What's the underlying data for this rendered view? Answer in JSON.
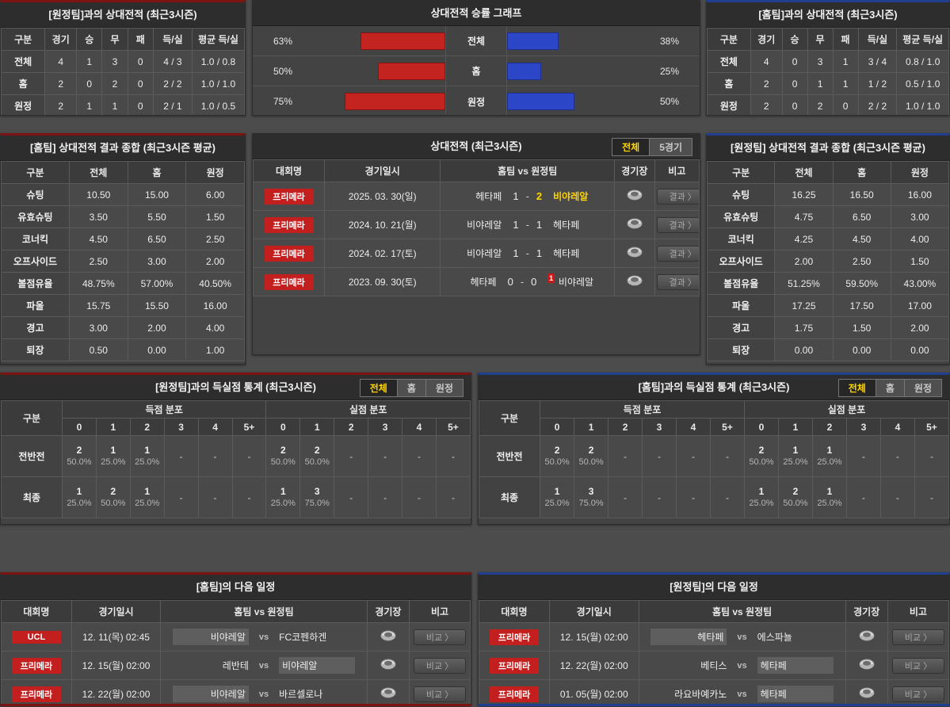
{
  "colors": {
    "home_accent_red": "#c42420",
    "away_accent_blue": "#2b46c6",
    "panel_border_red": "#7c1414",
    "panel_border_blue": "#20408f",
    "league_badge_red": "#c41f1f",
    "active_tab_text": "#ffd400",
    "winner_text": "#ffd400"
  },
  "top_summary_away": {
    "title": "[원정팀]과의 상대전적 (최근3시즌)",
    "headers": [
      "구분",
      "경기",
      "승",
      "무",
      "패",
      "득/실",
      "평균 득/실"
    ],
    "rows": [
      {
        "label": "전체",
        "values": [
          "4",
          "1",
          "3",
          "0",
          "4 / 3",
          "1.0 / 0.8"
        ]
      },
      {
        "label": "홈",
        "values": [
          "2",
          "0",
          "2",
          "0",
          "2 / 2",
          "1.0 / 1.0"
        ]
      },
      {
        "label": "원정",
        "values": [
          "2",
          "1",
          "1",
          "0",
          "2 / 1",
          "1.0 / 0.5"
        ]
      }
    ]
  },
  "top_summary_home": {
    "title": "[홈팀]과의 상대전적 (최근3시즌)",
    "headers": [
      "구분",
      "경기",
      "승",
      "무",
      "패",
      "득/실",
      "평균 득/실"
    ],
    "rows": [
      {
        "label": "전체",
        "values": [
          "4",
          "0",
          "3",
          "1",
          "3 / 4",
          "0.8 / 1.0"
        ]
      },
      {
        "label": "홈",
        "values": [
          "2",
          "0",
          "1",
          "1",
          "1 / 2",
          "0.5 / 1.0"
        ]
      },
      {
        "label": "원정",
        "values": [
          "2",
          "0",
          "2",
          "0",
          "2 / 2",
          "1.0 / 1.0"
        ]
      }
    ]
  },
  "chart_data": {
    "type": "bar",
    "title": "상대전적 승률 그래프",
    "orientation": "horizontal-diverging",
    "categories": [
      "전체",
      "홈",
      "원정"
    ],
    "series": [
      {
        "name": "home-winrate",
        "color": "#c42420",
        "values": [
          63,
          50,
          75
        ],
        "labels": [
          "63%",
          "50%",
          "75%"
        ]
      },
      {
        "name": "away-winrate",
        "color": "#2b46c6",
        "values": [
          38,
          25,
          50
        ],
        "labels": [
          "38%",
          "25%",
          "50%"
        ]
      }
    ],
    "xlim": [
      0,
      100
    ]
  },
  "composite_home": {
    "title": "[홈팀] 상대전적 결과 종합 (최근3시즌 평균)",
    "headers": [
      "구분",
      "전체",
      "홈",
      "원정"
    ],
    "rows": [
      {
        "label": "슈팅",
        "values": [
          "10.50",
          "15.00",
          "6.00"
        ]
      },
      {
        "label": "유효슈팅",
        "values": [
          "3.50",
          "5.50",
          "1.50"
        ]
      },
      {
        "label": "코너킥",
        "values": [
          "4.50",
          "6.50",
          "2.50"
        ]
      },
      {
        "label": "오프사이드",
        "values": [
          "2.50",
          "3.00",
          "2.00"
        ]
      },
      {
        "label": "볼점유율",
        "values": [
          "48.75%",
          "57.00%",
          "40.50%"
        ]
      },
      {
        "label": "파울",
        "values": [
          "15.75",
          "15.50",
          "16.00"
        ]
      },
      {
        "label": "경고",
        "values": [
          "3.00",
          "2.00",
          "4.00"
        ]
      },
      {
        "label": "퇴장",
        "values": [
          "0.50",
          "0.00",
          "1.00"
        ]
      }
    ]
  },
  "composite_away": {
    "title": "[원정팀] 상대전적 결과 종합 (최근3시즌 평균)",
    "headers": [
      "구분",
      "전체",
      "홈",
      "원정"
    ],
    "rows": [
      {
        "label": "슈팅",
        "values": [
          "16.25",
          "16.50",
          "16.00"
        ]
      },
      {
        "label": "유효슈팅",
        "values": [
          "4.75",
          "6.50",
          "3.00"
        ]
      },
      {
        "label": "코너킥",
        "values": [
          "4.25",
          "4.50",
          "4.00"
        ]
      },
      {
        "label": "오프사이드",
        "values": [
          "2.00",
          "2.50",
          "1.50"
        ]
      },
      {
        "label": "볼점유율",
        "values": [
          "51.25%",
          "59.50%",
          "43.00%"
        ]
      },
      {
        "label": "파울",
        "values": [
          "17.25",
          "17.50",
          "17.00"
        ]
      },
      {
        "label": "경고",
        "values": [
          "1.75",
          "1.50",
          "2.00"
        ]
      },
      {
        "label": "퇴장",
        "values": [
          "0.00",
          "0.00",
          "0.00"
        ]
      }
    ]
  },
  "h2h": {
    "title": "상대전적 (최근3시즌)",
    "tabs": [
      {
        "label": "전체",
        "active": true
      },
      {
        "label": "5경기",
        "active": false
      }
    ],
    "headers": [
      "대회명",
      "경기일시",
      "홈팀  vs  원정팀",
      "경기장",
      "비고"
    ],
    "button_label": "결과 〉",
    "rows": [
      {
        "league": "프리메라",
        "date": "2025. 03. 30(일)",
        "home": "헤타페",
        "home_score": "1",
        "away_score": "2",
        "away": "비야레알",
        "winner": "away",
        "red_card": null
      },
      {
        "league": "프리메라",
        "date": "2024. 10. 21(월)",
        "home": "비야레알",
        "home_score": "1",
        "away_score": "1",
        "away": "헤타페",
        "winner": null,
        "red_card": null
      },
      {
        "league": "프리메라",
        "date": "2024. 02. 17(토)",
        "home": "비야레알",
        "home_score": "1",
        "away_score": "1",
        "away": "헤타페",
        "winner": null,
        "red_card": null
      },
      {
        "league": "프리메라",
        "date": "2023. 09. 30(토)",
        "home": "헤타페",
        "home_score": "0",
        "away_score": "0",
        "away": "비야레알",
        "winner": null,
        "red_card": "1"
      }
    ]
  },
  "goal_stats_left": {
    "title": "[원정팀]과의 득실점 통계 (최근3시즌)",
    "tabs": [
      {
        "label": "전체",
        "active": true
      },
      {
        "label": "홈",
        "active": false
      },
      {
        "label": "원정",
        "active": false
      }
    ],
    "corner_header": "구분",
    "group_headers": [
      "득점 분포",
      "실점 분포"
    ],
    "score_cols": [
      "0",
      "1",
      "2",
      "3",
      "4",
      "5+"
    ],
    "rows": [
      {
        "label": "전반전",
        "scored": [
          {
            "count": "2",
            "pct": "50.0%"
          },
          {
            "count": "1",
            "pct": "25.0%"
          },
          {
            "count": "1",
            "pct": "25.0%"
          },
          null,
          null,
          null
        ],
        "conceded": [
          {
            "count": "2",
            "pct": "50.0%"
          },
          {
            "count": "2",
            "pct": "50.0%"
          },
          null,
          null,
          null,
          null
        ]
      },
      {
        "label": "최종",
        "scored": [
          {
            "count": "1",
            "pct": "25.0%"
          },
          {
            "count": "2",
            "pct": "50.0%"
          },
          {
            "count": "1",
            "pct": "25.0%"
          },
          null,
          null,
          null
        ],
        "conceded": [
          {
            "count": "1",
            "pct": "25.0%"
          },
          {
            "count": "3",
            "pct": "75.0%"
          },
          null,
          null,
          null,
          null
        ]
      }
    ]
  },
  "goal_stats_right": {
    "title": "[홈팀]과의 득실점 통계 (최근3시즌)",
    "tabs": [
      {
        "label": "전체",
        "active": true
      },
      {
        "label": "홈",
        "active": false
      },
      {
        "label": "원정",
        "active": false
      }
    ],
    "corner_header": "구분",
    "group_headers": [
      "득점 분포",
      "실점 분포"
    ],
    "score_cols": [
      "0",
      "1",
      "2",
      "3",
      "4",
      "5+"
    ],
    "rows": [
      {
        "label": "전반전",
        "scored": [
          {
            "count": "2",
            "pct": "50.0%"
          },
          {
            "count": "2",
            "pct": "50.0%"
          },
          null,
          null,
          null,
          null
        ],
        "conceded": [
          {
            "count": "2",
            "pct": "50.0%"
          },
          {
            "count": "1",
            "pct": "25.0%"
          },
          {
            "count": "1",
            "pct": "25.0%"
          },
          null,
          null,
          null
        ]
      },
      {
        "label": "최종",
        "scored": [
          {
            "count": "1",
            "pct": "25.0%"
          },
          {
            "count": "3",
            "pct": "75.0%"
          },
          null,
          null,
          null,
          null
        ],
        "conceded": [
          {
            "count": "1",
            "pct": "25.0%"
          },
          {
            "count": "2",
            "pct": "50.0%"
          },
          {
            "count": "1",
            "pct": "25.0%"
          },
          null,
          null,
          null
        ]
      }
    ]
  },
  "schedule_home": {
    "title": "[홈팀]의 다음 일정",
    "headers": [
      "대회명",
      "경기일시",
      "홈팀  vs  원정팀",
      "경기장",
      "비고"
    ],
    "button_label": "비교 〉",
    "rows": [
      {
        "league": "UCL",
        "date": "12. 11(목) 02:45",
        "home": "비야레알",
        "away": "FC코펜하겐",
        "highlight": "home"
      },
      {
        "league": "프리메라",
        "date": "12. 15(월) 02:00",
        "home": "레반테",
        "away": "비야레알",
        "highlight": "away"
      },
      {
        "league": "프리메라",
        "date": "12. 22(월) 02:00",
        "home": "비야레알",
        "away": "바르셀로나",
        "highlight": "home"
      }
    ]
  },
  "schedule_away": {
    "title": "[원정팀]의 다음 일정",
    "headers": [
      "대회명",
      "경기일시",
      "홈팀  vs  원정팀",
      "경기장",
      "비고"
    ],
    "button_label": "비교 〉",
    "rows": [
      {
        "league": "프리메라",
        "date": "12. 15(월) 02:00",
        "home": "헤타페",
        "away": "에스파뇰",
        "highlight": "home"
      },
      {
        "league": "프리메라",
        "date": "12. 22(월) 02:00",
        "home": "베티스",
        "away": "헤타페",
        "highlight": "away"
      },
      {
        "league": "프리메라",
        "date": "01. 05(월) 02:00",
        "home": "라요바예카노",
        "away": "헤타페",
        "highlight": "away"
      }
    ]
  }
}
